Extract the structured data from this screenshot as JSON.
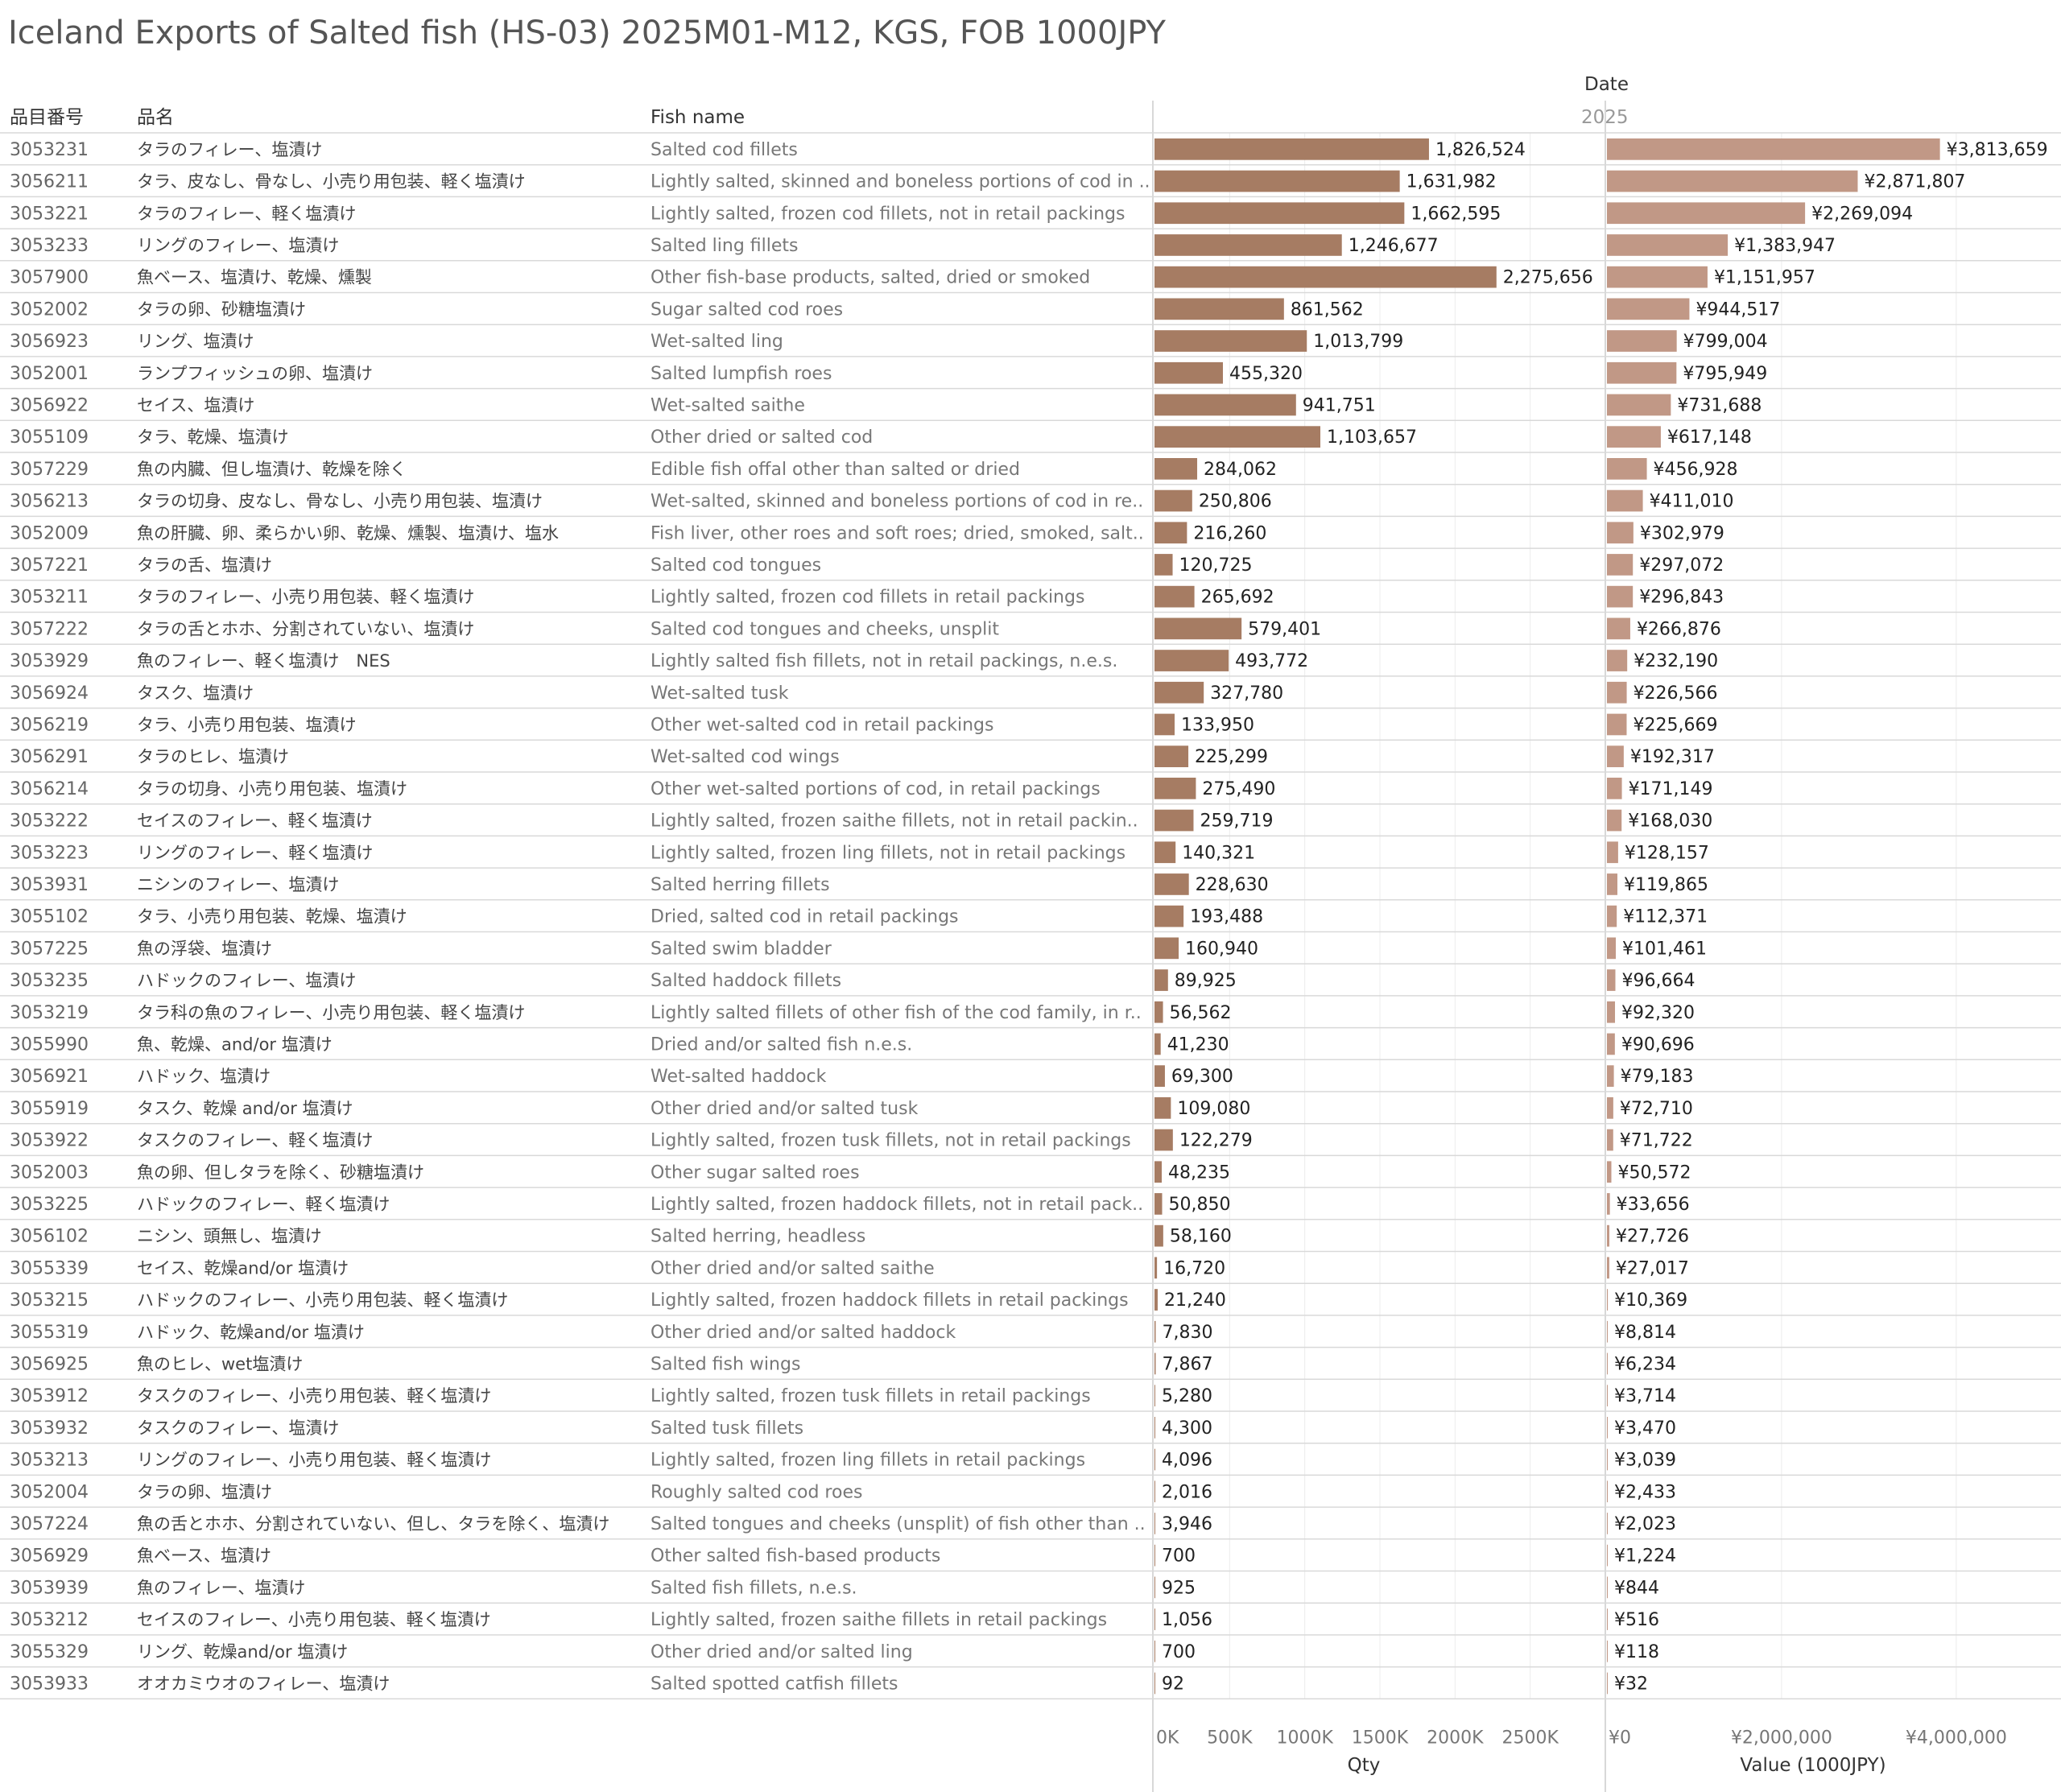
{
  "title": "Iceland Exports of Salted fish (HS-03) 2025M01-M12, KGS, FOB 1000JPY",
  "headers": {
    "code": "品目番号",
    "jp_name": "品名",
    "fish_name": "Fish name",
    "date": "Date",
    "year": "2025"
  },
  "axes": {
    "qty_label": "Qty",
    "value_label": "Value (1000JPY)",
    "qty_ticks": [
      "0K",
      "500K",
      "1000K",
      "1500K",
      "2000K",
      "2500K"
    ],
    "qty_tick_values": [
      0,
      500000,
      1000000,
      1500000,
      2000000,
      2500000
    ],
    "value_ticks": [
      "¥0",
      "¥2,000,000",
      "¥4,000,000"
    ],
    "value_tick_values": [
      0,
      2000000,
      4000000
    ]
  },
  "colors": {
    "qty_bar": "#a67c63",
    "value_bar": "#c19886",
    "row_line": "#d9d9d9",
    "gridline": "#ececec",
    "code_text": "#666666",
    "jp_text": "#444444",
    "en_text": "#777777",
    "label_text": "#222222"
  },
  "chart_data": {
    "type": "bar",
    "orientation": "horizontal",
    "title": "Iceland Exports of Salted fish (HS-03) 2025M01-M12, KGS, FOB 1000JPY",
    "series": [
      {
        "name": "Qty",
        "unit": "KGS",
        "xlim": [
          0,
          3000000
        ]
      },
      {
        "name": "Value (1000JPY)",
        "unit": "1000JPY",
        "xlim": [
          0,
          5200000
        ]
      }
    ],
    "rows": [
      {
        "code": "3053231",
        "jp": "タラのフィレー、塩漬け",
        "en": "Salted cod fillets",
        "qty": 1826524,
        "qty_label": "1,826,524",
        "value": 3813659,
        "value_label": "¥3,813,659"
      },
      {
        "code": "3056211",
        "jp": "タラ、皮なし、骨なし、小売り用包装、軽く塩漬け",
        "en": "Lightly salted, skinned and boneless portions of cod in ..",
        "qty": 1631982,
        "qty_label": "1,631,982",
        "value": 2871807,
        "value_label": "¥2,871,807"
      },
      {
        "code": "3053221",
        "jp": "タラのフィレー、軽く塩漬け",
        "en": "Lightly salted, frozen cod fillets, not in retail packings",
        "qty": 1662595,
        "qty_label": "1,662,595",
        "value": 2269094,
        "value_label": "¥2,269,094"
      },
      {
        "code": "3053233",
        "jp": "リングのフィレー、塩漬け",
        "en": "Salted ling fillets",
        "qty": 1246677,
        "qty_label": "1,246,677",
        "value": 1383947,
        "value_label": "¥1,383,947"
      },
      {
        "code": "3057900",
        "jp": "魚ベース、塩漬け、乾燥、燻製",
        "en": "Other fish-base products, salted, dried or smoked",
        "qty": 2275656,
        "qty_label": "2,275,656",
        "value": 1151957,
        "value_label": "¥1,151,957"
      },
      {
        "code": "3052002",
        "jp": "タラの卵、砂糖塩漬け",
        "en": "Sugar salted cod roes",
        "qty": 861562,
        "qty_label": "861,562",
        "value": 944517,
        "value_label": "¥944,517"
      },
      {
        "code": "3056923",
        "jp": "リング、塩漬け",
        "en": "Wet-salted ling",
        "qty": 1013799,
        "qty_label": "1,013,799",
        "value": 799004,
        "value_label": "¥799,004"
      },
      {
        "code": "3052001",
        "jp": "ランプフィッシュの卵、塩漬け",
        "en": "Salted lumpfish roes",
        "qty": 455320,
        "qty_label": "455,320",
        "value": 795949,
        "value_label": "¥795,949"
      },
      {
        "code": "3056922",
        "jp": "セイス、塩漬け",
        "en": "Wet-salted saithe",
        "qty": 941751,
        "qty_label": "941,751",
        "value": 731688,
        "value_label": "¥731,688"
      },
      {
        "code": "3055109",
        "jp": "タラ、乾燥、塩漬け",
        "en": "Other dried or salted cod",
        "qty": 1103657,
        "qty_label": "1,103,657",
        "value": 617148,
        "value_label": "¥617,148"
      },
      {
        "code": "3057229",
        "jp": "魚の内臓、但し塩漬け、乾燥を除く",
        "en": "Edible fish offal other than salted or dried",
        "qty": 284062,
        "qty_label": "284,062",
        "value": 456928,
        "value_label": "¥456,928"
      },
      {
        "code": "3056213",
        "jp": "タラの切身、皮なし、骨なし、小売り用包装、塩漬け",
        "en": "Wet-salted, skinned and boneless portions of cod in re..",
        "qty": 250806,
        "qty_label": "250,806",
        "value": 411010,
        "value_label": "¥411,010"
      },
      {
        "code": "3052009",
        "jp": "魚の肝臓、卵、柔らかい卵、乾燥、燻製、塩漬け、塩水",
        "en": "Fish liver, other roes and soft roes; dried, smoked, salt..",
        "qty": 216260,
        "qty_label": "216,260",
        "value": 302979,
        "value_label": "¥302,979"
      },
      {
        "code": "3057221",
        "jp": "タラの舌、塩漬け",
        "en": "Salted cod tongues",
        "qty": 120725,
        "qty_label": "120,725",
        "value": 297072,
        "value_label": "¥297,072"
      },
      {
        "code": "3053211",
        "jp": "タラのフィレー、小売り用包装、軽く塩漬け",
        "en": "Lightly salted, frozen cod fillets in retail packings",
        "qty": 265692,
        "qty_label": "265,692",
        "value": 296843,
        "value_label": "¥296,843"
      },
      {
        "code": "3057222",
        "jp": "タラの舌とホホ、分割されていない、塩漬け",
        "en": "Salted cod tongues and cheeks, unsplit",
        "qty": 579401,
        "qty_label": "579,401",
        "value": 266876,
        "value_label": "¥266,876"
      },
      {
        "code": "3053929",
        "jp": "魚のフィレー、軽く塩漬け　NES",
        "en": "Lightly salted fish fillets, not in retail packings, n.e.s.",
        "qty": 493772,
        "qty_label": "493,772",
        "value": 232190,
        "value_label": "¥232,190"
      },
      {
        "code": "3056924",
        "jp": "タスク、塩漬け",
        "en": "Wet-salted tusk",
        "qty": 327780,
        "qty_label": "327,780",
        "value": 226566,
        "value_label": "¥226,566"
      },
      {
        "code": "3056219",
        "jp": "タラ、小売り用包装、塩漬け",
        "en": "Other wet-salted cod in retail packings",
        "qty": 133950,
        "qty_label": "133,950",
        "value": 225669,
        "value_label": "¥225,669"
      },
      {
        "code": "3056291",
        "jp": "タラのヒレ、塩漬け",
        "en": "Wet-salted cod wings",
        "qty": 225299,
        "qty_label": "225,299",
        "value": 192317,
        "value_label": "¥192,317"
      },
      {
        "code": "3056214",
        "jp": "タラの切身、小売り用包装、塩漬け",
        "en": "Other wet-salted portions of cod, in retail packings",
        "qty": 275490,
        "qty_label": "275,490",
        "value": 171149,
        "value_label": "¥171,149"
      },
      {
        "code": "3053222",
        "jp": "セイスのフィレー、軽く塩漬け",
        "en": "Lightly salted, frozen saithe fillets, not in retail packin..",
        "qty": 259719,
        "qty_label": "259,719",
        "value": 168030,
        "value_label": "¥168,030"
      },
      {
        "code": "3053223",
        "jp": "リングのフィレー、軽く塩漬け",
        "en": "Lightly salted, frozen ling fillets, not in retail packings",
        "qty": 140321,
        "qty_label": "140,321",
        "value": 128157,
        "value_label": "¥128,157"
      },
      {
        "code": "3053931",
        "jp": "ニシンのフィレー、塩漬け",
        "en": "Salted herring fillets",
        "qty": 228630,
        "qty_label": "228,630",
        "value": 119865,
        "value_label": "¥119,865"
      },
      {
        "code": "3055102",
        "jp": "タラ、小売り用包装、乾燥、塩漬け",
        "en": "Dried, salted cod in retail packings",
        "qty": 193488,
        "qty_label": "193,488",
        "value": 112371,
        "value_label": "¥112,371"
      },
      {
        "code": "3057225",
        "jp": "魚の浮袋、塩漬け",
        "en": "Salted swim bladder",
        "qty": 160940,
        "qty_label": "160,940",
        "value": 101461,
        "value_label": "¥101,461"
      },
      {
        "code": "3053235",
        "jp": "ハドックのフィレー、塩漬け",
        "en": "Salted haddock fillets",
        "qty": 89925,
        "qty_label": "89,925",
        "value": 96664,
        "value_label": "¥96,664"
      },
      {
        "code": "3053219",
        "jp": "タラ科の魚のフィレー、小売り用包装、軽く塩漬け",
        "en": "Lightly salted fillets of other fish of the cod family, in r..",
        "qty": 56562,
        "qty_label": "56,562",
        "value": 92320,
        "value_label": "¥92,320"
      },
      {
        "code": "3055990",
        "jp": "魚、乾燥、and/or 塩漬け",
        "en": "Dried and/or salted fish n.e.s.",
        "qty": 41230,
        "qty_label": "41,230",
        "value": 90696,
        "value_label": "¥90,696"
      },
      {
        "code": "3056921",
        "jp": "ハドック、塩漬け",
        "en": "Wet-salted haddock",
        "qty": 69300,
        "qty_label": "69,300",
        "value": 79183,
        "value_label": "¥79,183"
      },
      {
        "code": "3055919",
        "jp": "タスク、乾燥 and/or 塩漬け",
        "en": "Other dried and/or salted tusk",
        "qty": 109080,
        "qty_label": "109,080",
        "value": 72710,
        "value_label": "¥72,710"
      },
      {
        "code": "3053922",
        "jp": "タスクのフィレー、軽く塩漬け",
        "en": "Lightly salted, frozen tusk fillets, not in retail packings",
        "qty": 122279,
        "qty_label": "122,279",
        "value": 71722,
        "value_label": "¥71,722"
      },
      {
        "code": "3052003",
        "jp": "魚の卵、但しタラを除く、砂糖塩漬け",
        "en": "Other sugar salted roes",
        "qty": 48235,
        "qty_label": "48,235",
        "value": 50572,
        "value_label": "¥50,572"
      },
      {
        "code": "3053225",
        "jp": "ハドックのフィレー、軽く塩漬け",
        "en": "Lightly salted, frozen haddock fillets, not in retail pack..",
        "qty": 50850,
        "qty_label": "50,850",
        "value": 33656,
        "value_label": "¥33,656"
      },
      {
        "code": "3056102",
        "jp": "ニシン、頭無し、塩漬け",
        "en": "Salted herring, headless",
        "qty": 58160,
        "qty_label": "58,160",
        "value": 27726,
        "value_label": "¥27,726"
      },
      {
        "code": "3055339",
        "jp": "セイス、乾燥and/or 塩漬け",
        "en": "Other dried and/or salted saithe",
        "qty": 16720,
        "qty_label": "16,720",
        "value": 27017,
        "value_label": "¥27,017"
      },
      {
        "code": "3053215",
        "jp": "ハドックのフィレー、小売り用包装、軽く塩漬け",
        "en": "Lightly salted, frozen haddock fillets in retail packings",
        "qty": 21240,
        "qty_label": "21,240",
        "value": 10369,
        "value_label": "¥10,369"
      },
      {
        "code": "3055319",
        "jp": "ハドック、乾燥and/or 塩漬け",
        "en": "Other dried and/or salted haddock",
        "qty": 7830,
        "qty_label": "7,830",
        "value": 8814,
        "value_label": "¥8,814"
      },
      {
        "code": "3056925",
        "jp": "魚のヒレ、wet塩漬け",
        "en": "Salted fish wings",
        "qty": 7867,
        "qty_label": "7,867",
        "value": 6234,
        "value_label": "¥6,234"
      },
      {
        "code": "3053912",
        "jp": "タスクのフィレー、小売り用包装、軽く塩漬け",
        "en": "Lightly salted, frozen tusk fillets in retail packings",
        "qty": 5280,
        "qty_label": "5,280",
        "value": 3714,
        "value_label": "¥3,714"
      },
      {
        "code": "3053932",
        "jp": "タスクのフィレー、塩漬け",
        "en": "Salted tusk fillets",
        "qty": 4300,
        "qty_label": "4,300",
        "value": 3470,
        "value_label": "¥3,470"
      },
      {
        "code": "3053213",
        "jp": "リングのフィレー、小売り用包装、軽く塩漬け",
        "en": "Lightly salted, frozen ling fillets in retail packings",
        "qty": 4096,
        "qty_label": "4,096",
        "value": 3039,
        "value_label": "¥3,039"
      },
      {
        "code": "3052004",
        "jp": "タラの卵、塩漬け",
        "en": "Roughly salted cod roes",
        "qty": 2016,
        "qty_label": "2,016",
        "value": 2433,
        "value_label": "¥2,433"
      },
      {
        "code": "3057224",
        "jp": "魚の舌とホホ、分割されていない、但し、タラを除く、塩漬け",
        "en": "Salted tongues and cheeks (unsplit) of fish other than ..",
        "qty": 3946,
        "qty_label": "3,946",
        "value": 2023,
        "value_label": "¥2,023"
      },
      {
        "code": "3056929",
        "jp": "魚ベース、塩漬け",
        "en": "Other salted fish-based products",
        "qty": 700,
        "qty_label": "700",
        "value": 1224,
        "value_label": "¥1,224"
      },
      {
        "code": "3053939",
        "jp": "魚のフィレー、塩漬け",
        "en": "Salted fish fillets, n.e.s.",
        "qty": 925,
        "qty_label": "925",
        "value": 844,
        "value_label": "¥844"
      },
      {
        "code": "3053212",
        "jp": "セイスのフィレー、小売り用包装、軽く塩漬け",
        "en": "Lightly salted, frozen saithe fillets in retail packings",
        "qty": 1056,
        "qty_label": "1,056",
        "value": 516,
        "value_label": "¥516"
      },
      {
        "code": "3055329",
        "jp": "リング、乾燥and/or 塩漬け",
        "en": "Other dried and/or salted ling",
        "qty": 700,
        "qty_label": "700",
        "value": 118,
        "value_label": "¥118"
      },
      {
        "code": "3053933",
        "jp": "オオカミウオのフィレー、塩漬け",
        "en": "Salted spotted catfish fillets",
        "qty": 92,
        "qty_label": "92",
        "value": 32,
        "value_label": "¥32"
      }
    ]
  }
}
